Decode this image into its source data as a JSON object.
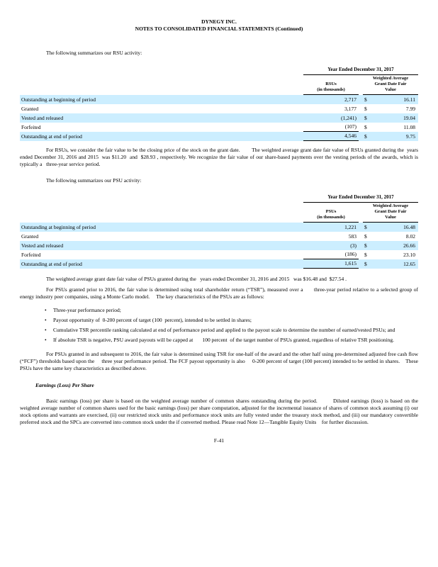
{
  "colors": {
    "row_highlight": "#cceeff",
    "text": "#000000",
    "rule": "#000000"
  },
  "header": {
    "title_line1": "DYNEGY INC.",
    "title_line2": "NOTES TO CONSOLIDATED FINANCIAL STATEMENTS (Continued)"
  },
  "intro_rsu": "The following summarizes our RSU activity:",
  "rsu_table": {
    "period_header": "Year Ended December 31, 2017",
    "col_units_header": [
      "RSUs",
      "(in thousands)"
    ],
    "col_value_header": [
      "Weighted Average",
      "Grant Date Fair",
      "Value"
    ],
    "rows": [
      {
        "label": "Outstanding at beginning of period",
        "units": "2,717",
        "currency": "$",
        "value": "16.11",
        "highlight": true,
        "total": false
      },
      {
        "label": "Granted",
        "units": "3,177",
        "currency": "$",
        "value": "7.99",
        "highlight": false,
        "total": false
      },
      {
        "label": "Vested and released",
        "units": "(1,241)",
        "currency": "$",
        "value": "19.04",
        "highlight": true,
        "total": false
      },
      {
        "label": "Forfeited",
        "units": "(107)",
        "currency": "$",
        "value": "11.08",
        "highlight": false,
        "total": false
      },
      {
        "label": "Outstanding at end of period",
        "units": "4,546",
        "currency": "$",
        "value": "9.75",
        "highlight": true,
        "total": true
      }
    ]
  },
  "para_rsu": "For RSUs, we consider the fair value to be the closing price of the stock on the grant date.        The weighted average grant date fair value of RSUs granted during the  years ended December 31, 2016 and 2015  was $11.20  and  $28.93 , respectively. We recognize the fair value of our share-based payments over the vesting periods of the awards, which is typically a   three-year service period.",
  "intro_psu": "The following summarizes our PSU activity:",
  "psu_table": {
    "period_header": "Year Ended December 31, 2017",
    "col_units_header": [
      "PSUs",
      "(in thousands)"
    ],
    "col_value_header": [
      "Weighted Average",
      "Grant Date Fair",
      "Value"
    ],
    "rows": [
      {
        "label": "Outstanding at beginning of period",
        "units": "1,221",
        "currency": "$",
        "value": "16.48",
        "highlight": true,
        "total": false
      },
      {
        "label": "Granted",
        "units": "583",
        "currency": "$",
        "value": "8.02",
        "highlight": false,
        "total": false
      },
      {
        "label": "Vested and released",
        "units": "(3)",
        "currency": "$",
        "value": "26.66",
        "highlight": true,
        "total": false
      },
      {
        "label": "Forfeited",
        "units": "(186)",
        "currency": "$",
        "value": "23.10",
        "highlight": false,
        "total": false
      },
      {
        "label": "Outstanding at end of period",
        "units": "1,615",
        "currency": "$",
        "value": "12.65",
        "highlight": true,
        "total": true
      }
    ]
  },
  "para_psu_fair_value": "The weighted average grant date fair value of PSUs granted during the   years ended December 31, 2016 and 2015   was $16.48 and  $27.54 .",
  "para_psu_prior_2016": "For PSUs granted prior to 2016, the fair value is determined using total shareholder return (“TSR”), measured over a      three-year period relative to a selected group of energy industry peer companies, using a Monte Carlo model.     The key characteristics of the PSUs are as follows:",
  "bullets": {
    "marker": "•",
    "items": [
      "Three-year performance period;",
      "Payout opportunity of  0-200 percent of target (100  percent), intended to be settled in shares;",
      "Cumulative TSR percentile ranking calculated at end of performance period and applied to the payout scale to determine the number of earned/vested PSUs; and",
      "If absolute TSR is negative, PSU award payouts will be capped at       100 percent  of the target number of PSUs granted, regardless of relative TSR positioning."
    ]
  },
  "para_psu_subsequent_2016": "For PSUs granted in and subsequent to 2016, the fair value is determined using TSR for one-half of the award and the other half using pre-determined adjusted free cash flow (“FCF”) thresholds based upon the     three year performance period. The FCF payout opportunity is also     0-200 percent of target (100 percent) intended to be settled in shares.    These PSUs have the same key characteristics as described above.",
  "eps_heading": "Earnings (Loss) Per Share",
  "para_eps": "Basic earnings (loss) per share is based on the weighted average number of common shares outstanding during the period.        Diluted earnings (loss) is based on the weighted average number of common shares used for the basic earnings (loss) per share computation, adjusted for the incremental issuance of shares of common stock assuming (i) our stock options and warrants are exercised, (ii) our restricted stock units and performance stock units are fully vested under the treasury stock method, and (iii) our mandatory convertible preferred stock and the SPCs are converted into common stock under the if converted method. Please read Note 12—Tangible Equity Units    for further discussion.",
  "footer": "F-41"
}
